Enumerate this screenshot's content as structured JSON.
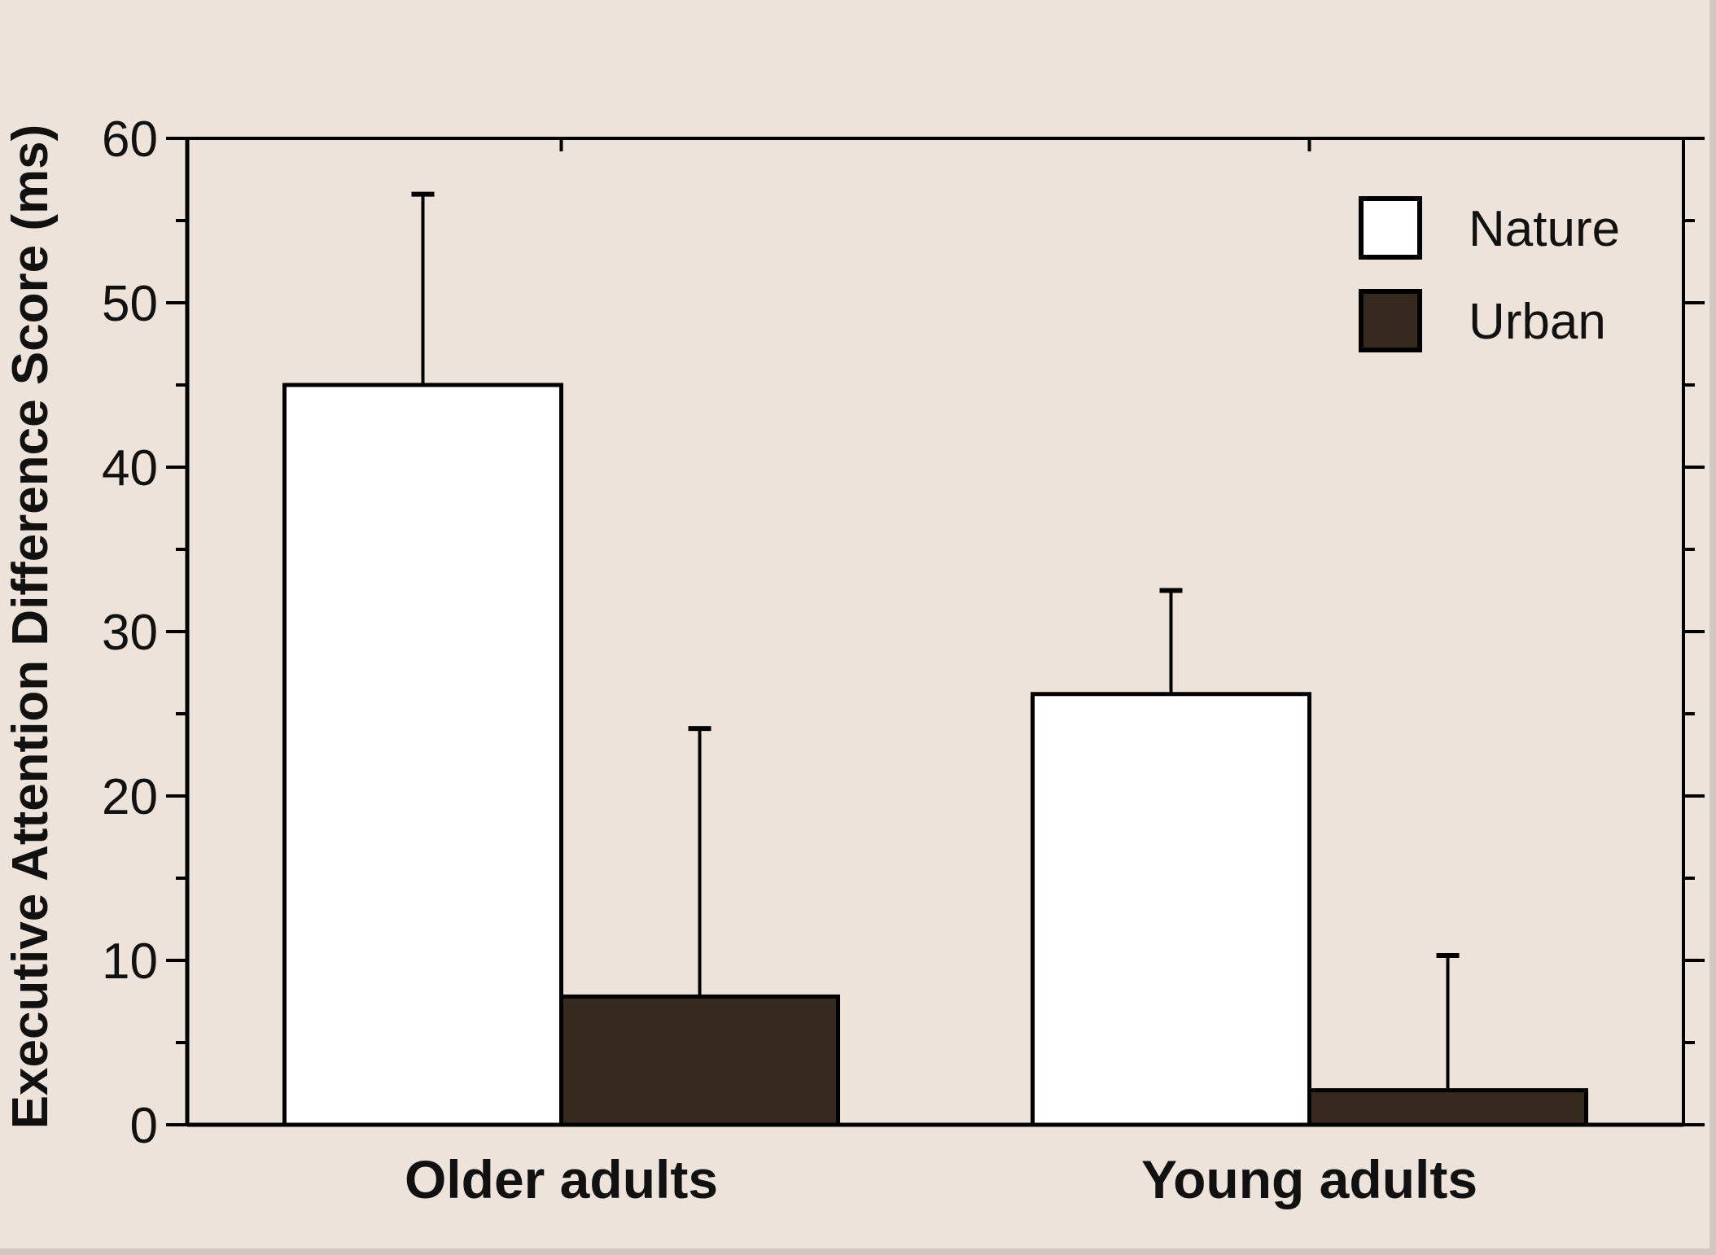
{
  "chart_data": {
    "type": "bar",
    "ylabel": "Executive Attention Difference Score (ms)",
    "xlabel": "",
    "ylim": [
      0,
      60
    ],
    "yticks": [
      0,
      10,
      20,
      30,
      40,
      50,
      60
    ],
    "grid": false,
    "legend_position": "top-right",
    "categories": [
      "Older adults",
      "Young adults"
    ],
    "series": [
      {
        "name": "Nature",
        "values": [
          45,
          26.2
        ],
        "error": [
          11.6,
          6.3
        ],
        "color": "#ffffff"
      },
      {
        "name": "Urban",
        "values": [
          7.8,
          2.1
        ],
        "error": [
          16.3,
          8.2
        ],
        "color": "#352a1d"
      }
    ],
    "colors": {
      "background": "#ede3da",
      "axis": "#000000"
    }
  }
}
